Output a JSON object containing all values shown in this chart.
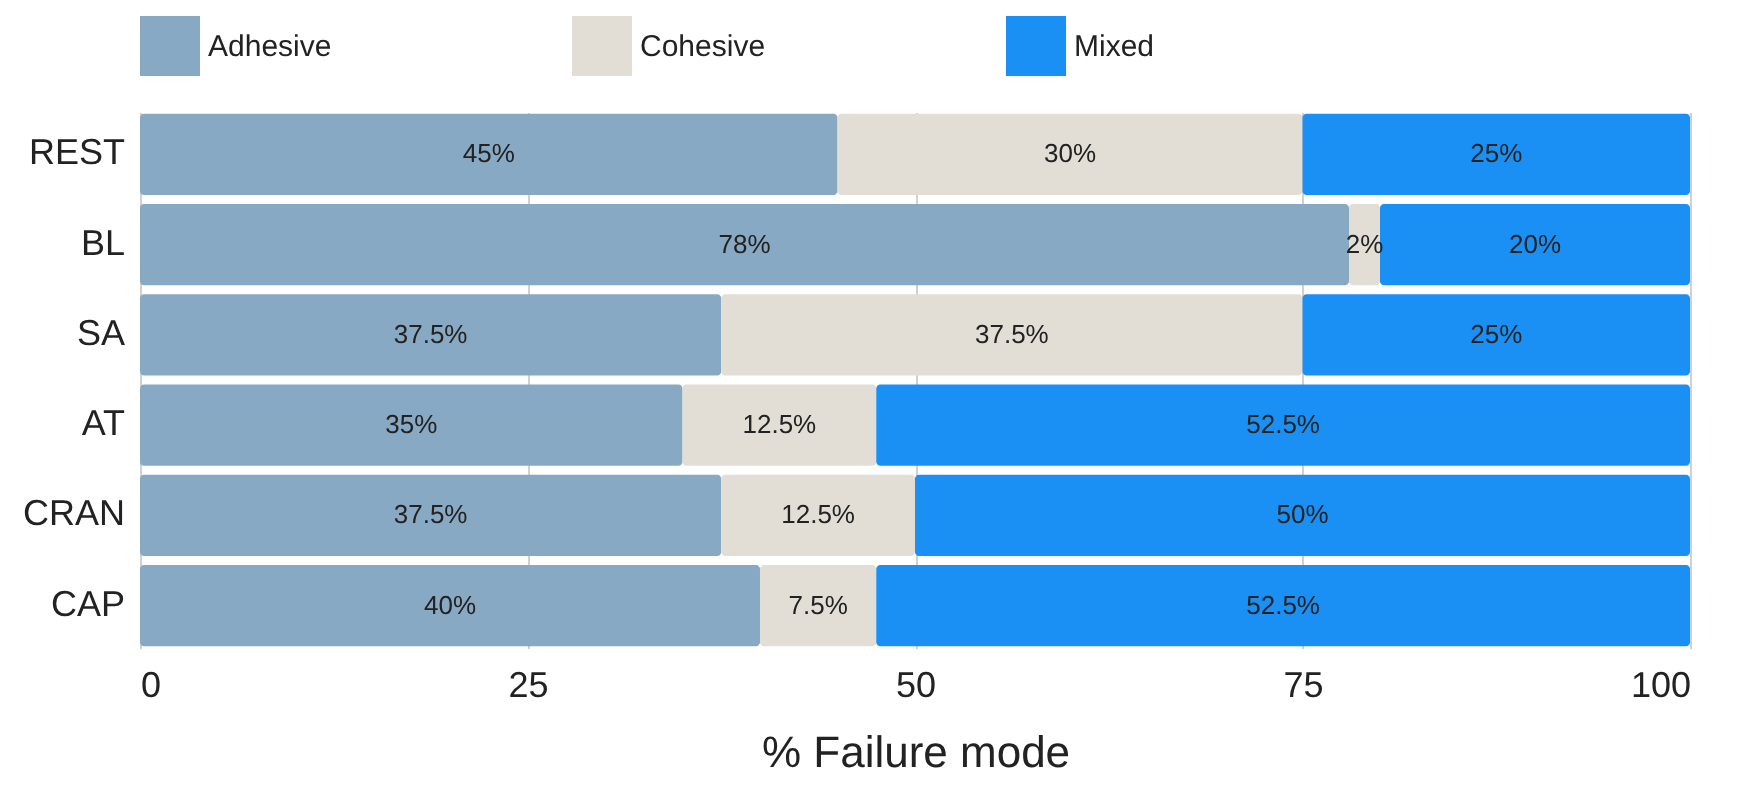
{
  "chart_data": {
    "type": "bar",
    "orientation": "horizontal",
    "stacked": true,
    "xlabel": "% Failure mode",
    "categories": [
      "REST",
      "BL",
      "SA",
      "AT",
      "CRAN",
      "CAP"
    ],
    "series": [
      {
        "name": "Adhesive",
        "color": "#88a9c3",
        "values": [
          45,
          78,
          37.5,
          35,
          37.5,
          40
        ],
        "value_labels": [
          "45%",
          "78%",
          "37.5%",
          "35%",
          "37.5%",
          "40%"
        ]
      },
      {
        "name": "Cohesive",
        "color": "#e2ddd5",
        "values": [
          30,
          2,
          37.5,
          12.5,
          12.5,
          7.5
        ],
        "value_labels": [
          "30%",
          "2%",
          "37.5%",
          "12.5%",
          "12.5%",
          "7.5%"
        ]
      },
      {
        "name": "Mixed",
        "color": "#1a90f5",
        "values": [
          25,
          20,
          25,
          52.5,
          50,
          52.5
        ],
        "value_labels": [
          "25%",
          "20%",
          "25%",
          "52.5%",
          "50%",
          "52.5%"
        ]
      }
    ],
    "xlim": [
      0,
      100
    ],
    "xticks": [
      0,
      25,
      50,
      75,
      100
    ],
    "grid": "x",
    "legend": "top"
  }
}
